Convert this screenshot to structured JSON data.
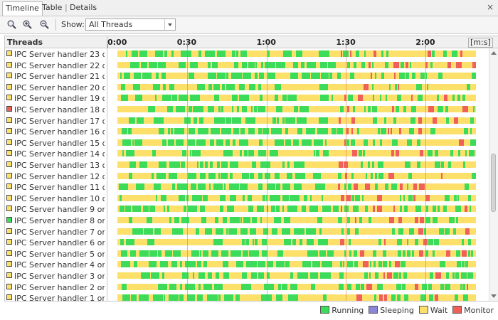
{
  "tabs": [
    {
      "label": "Timeline",
      "active": true
    },
    {
      "label": "Table",
      "active": false
    },
    {
      "label": "Details",
      "active": false
    }
  ],
  "tab_separator": "|",
  "close_glyph": "×",
  "toolbar": {
    "show_label": "Show:",
    "show_value": "All Threads",
    "zoom_icons": [
      "zoom-reset-icon",
      "zoom-in-icon",
      "zoom-out-icon"
    ]
  },
  "colors": {
    "running": "#3ddb5a",
    "sleeping": "#8c86d9",
    "wait": "#fde06a",
    "monitor": "#f0605a",
    "grid_teal": "#5aa88a",
    "grid_red": "#d86a5a"
  },
  "chart_data": {
    "type": "timeline",
    "columns_header": "Threads",
    "x_ticks": [
      "0:00",
      "0:30",
      "1:00",
      "1:30",
      "2:00"
    ],
    "x_tick_values": [
      0,
      30,
      60,
      90,
      120
    ],
    "x_unit": "[m:s]",
    "xlim": [
      0,
      139
    ],
    "threads": [
      {
        "name": "IPC Server handler 23 o...",
        "state": "wait"
      },
      {
        "name": "IPC Server handler 22 o...",
        "state": "wait"
      },
      {
        "name": "IPC Server handler 21 o...",
        "state": "wait"
      },
      {
        "name": "IPC Server handler 20 o...",
        "state": "wait"
      },
      {
        "name": "IPC Server handler 19 o...",
        "state": "wait"
      },
      {
        "name": "IPC Server handler 18 o...",
        "state": "monitor"
      },
      {
        "name": "IPC Server handler 17 o...",
        "state": "wait"
      },
      {
        "name": "IPC Server handler 16 o...",
        "state": "wait"
      },
      {
        "name": "IPC Server handler 15 o...",
        "state": "wait"
      },
      {
        "name": "IPC Server handler 14 o...",
        "state": "wait"
      },
      {
        "name": "IPC Server handler 13 o...",
        "state": "wait"
      },
      {
        "name": "IPC Server handler 12 o...",
        "state": "wait"
      },
      {
        "name": "IPC Server handler 11 o...",
        "state": "wait"
      },
      {
        "name": "IPC Server handler 10 o...",
        "state": "wait"
      },
      {
        "name": "IPC Server handler 9 on...",
        "state": "wait"
      },
      {
        "name": "IPC Server handler 8 on...",
        "state": "running"
      },
      {
        "name": "IPC Server handler 7 on...",
        "state": "wait"
      },
      {
        "name": "IPC Server handler 6 on...",
        "state": "wait"
      },
      {
        "name": "IPC Server handler 5 on...",
        "state": "wait"
      },
      {
        "name": "IPC Server handler 4 on...",
        "state": "wait"
      },
      {
        "name": "IPC Server handler 3 on...",
        "state": "wait"
      },
      {
        "name": "IPC Server handler 2 on...",
        "state": "wait"
      },
      {
        "name": "IPC Server handler 1 on...",
        "state": "wait"
      }
    ]
  },
  "legend": [
    {
      "label": "Running",
      "key": "running"
    },
    {
      "label": "Sleeping",
      "key": "sleeping"
    },
    {
      "label": "Wait",
      "key": "wait"
    },
    {
      "label": "Monitor",
      "key": "monitor"
    }
  ]
}
